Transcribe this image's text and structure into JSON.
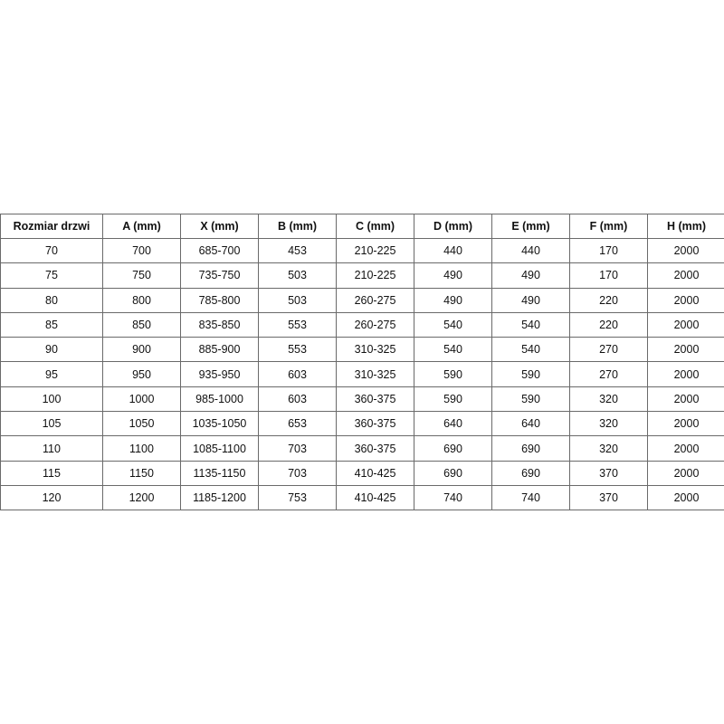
{
  "table": {
    "headers": [
      "Rozmiar drzwi",
      "A (mm)",
      "X (mm)",
      "B (mm)",
      "C (mm)",
      "D (mm)",
      "E (mm)",
      "F (mm)",
      "H (mm)"
    ],
    "rows": [
      [
        "70",
        "700",
        "685-700",
        "453",
        "210-225",
        "440",
        "440",
        "170",
        "2000"
      ],
      [
        "75",
        "750",
        "735-750",
        "503",
        "210-225",
        "490",
        "490",
        "170",
        "2000"
      ],
      [
        "80",
        "800",
        "785-800",
        "503",
        "260-275",
        "490",
        "490",
        "220",
        "2000"
      ],
      [
        "85",
        "850",
        "835-850",
        "553",
        "260-275",
        "540",
        "540",
        "220",
        "2000"
      ],
      [
        "90",
        "900",
        "885-900",
        "553",
        "310-325",
        "540",
        "540",
        "270",
        "2000"
      ],
      [
        "95",
        "950",
        "935-950",
        "603",
        "310-325",
        "590",
        "590",
        "270",
        "2000"
      ],
      [
        "100",
        "1000",
        "985-1000",
        "603",
        "360-375",
        "590",
        "590",
        "320",
        "2000"
      ],
      [
        "105",
        "1050",
        "1035-1050",
        "653",
        "360-375",
        "640",
        "640",
        "320",
        "2000"
      ],
      [
        "110",
        "1100",
        "1085-1100",
        "703",
        "360-375",
        "690",
        "690",
        "320",
        "2000"
      ],
      [
        "115",
        "1150",
        "1135-1150",
        "703",
        "410-425",
        "690",
        "690",
        "370",
        "2000"
      ],
      [
        "120",
        "1200",
        "1185-1200",
        "753",
        "410-425",
        "740",
        "740",
        "370",
        "2000"
      ]
    ]
  }
}
